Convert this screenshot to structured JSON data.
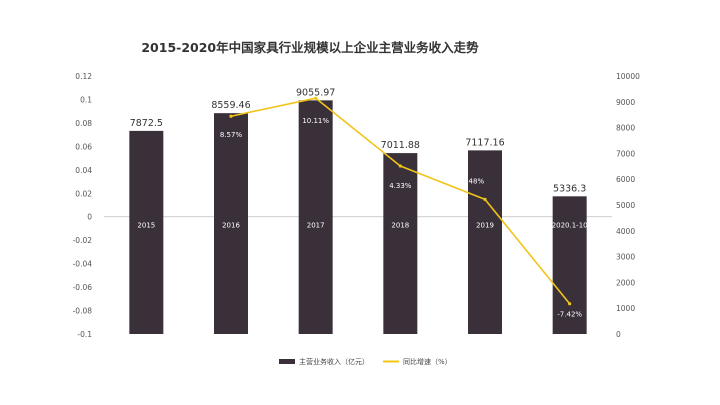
{
  "chart_data": {
    "type": "bar",
    "title": "2015-2020年中国家具行业规模以上企业主营业务收入走势",
    "categories": [
      "2015",
      "2016",
      "2017",
      "2018",
      "2019",
      "2020.1-10"
    ],
    "series": [
      {
        "name": "主营业务收入（亿元）",
        "type": "bar",
        "axis": "right",
        "values": [
          7872.5,
          8559.46,
          9055.97,
          7011.88,
          7117.16,
          5336.3
        ],
        "labels": [
          "7872.5",
          "8559.46",
          "9055.97",
          "7011.88",
          "7117.16",
          "5336.3"
        ]
      },
      {
        "name": "同比增速（%）",
        "type": "line",
        "axis": "left",
        "values": [
          null,
          0.0857,
          0.1011,
          0.0433,
          0.0148,
          -0.0742
        ],
        "labels": [
          "",
          "8.57%",
          "10.11%",
          "4.33%",
          "1.48%",
          "-7.42%"
        ]
      }
    ],
    "y_left": {
      "range": [
        -0.1,
        0.12
      ],
      "ticks": [
        -0.1,
        -0.08,
        -0.06,
        -0.04,
        -0.02,
        0,
        0.02,
        0.04,
        0.06,
        0.08,
        0.1,
        0.12
      ],
      "tick_labels": [
        "-0.1",
        "-0.08",
        "-0.06",
        "-0.04",
        "-0.02",
        "0",
        "0.02",
        "0.04",
        "0.06",
        "0.08",
        "0.1",
        "0.12"
      ]
    },
    "y_right": {
      "range": [
        0,
        10000
      ],
      "ticks": [
        0,
        1000,
        2000,
        3000,
        4000,
        5000,
        6000,
        7000,
        8000,
        9000,
        10000
      ],
      "tick_labels": [
        "0",
        "1000",
        "2000",
        "3000",
        "4000",
        "5000",
        "6000",
        "7000",
        "8000",
        "9000",
        "10000"
      ]
    },
    "grid": false,
    "legend": "bottom-center",
    "colors": {
      "bar": "#3a3039",
      "line": "#f0c419"
    }
  }
}
